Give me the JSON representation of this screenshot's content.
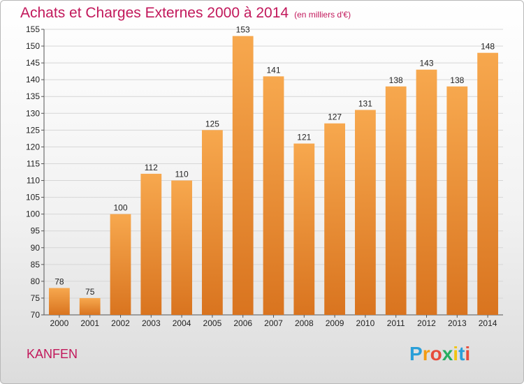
{
  "header": {
    "title": "Achats et Charges Externes 2000 à 2014",
    "unit": "(en milliers d'€)"
  },
  "commune": "KANFEN",
  "logo": {
    "text": "Proxiti",
    "letters": [
      "P",
      "r",
      "o",
      "x",
      "i",
      "t",
      "i"
    ],
    "colors": [
      "#2a9fd8",
      "#f39c12",
      "#e74c3c",
      "#27ae60",
      "#f1c40f",
      "#2a9fd8",
      "#e74c3c"
    ]
  },
  "colors": {
    "bar_top": "#f7a84e",
    "bar_bottom": "#d9741f",
    "title": "#c2185b"
  },
  "chart_data": {
    "type": "bar",
    "categories": [
      "2000",
      "2001",
      "2002",
      "2003",
      "2004",
      "2005",
      "2006",
      "2007",
      "2008",
      "2009",
      "2010",
      "2011",
      "2012",
      "2013",
      "2014"
    ],
    "values": [
      78,
      75,
      100,
      112,
      110,
      125,
      153,
      141,
      121,
      127,
      131,
      138,
      143,
      138,
      148
    ],
    "title": "Achats et Charges Externes 2000 à 2014",
    "ylim": [
      70,
      155
    ],
    "yticks": [
      70,
      75,
      80,
      85,
      90,
      95,
      100,
      105,
      110,
      115,
      120,
      125,
      130,
      135,
      140,
      145,
      150,
      155
    ],
    "grid": true,
    "data_labels": true
  }
}
